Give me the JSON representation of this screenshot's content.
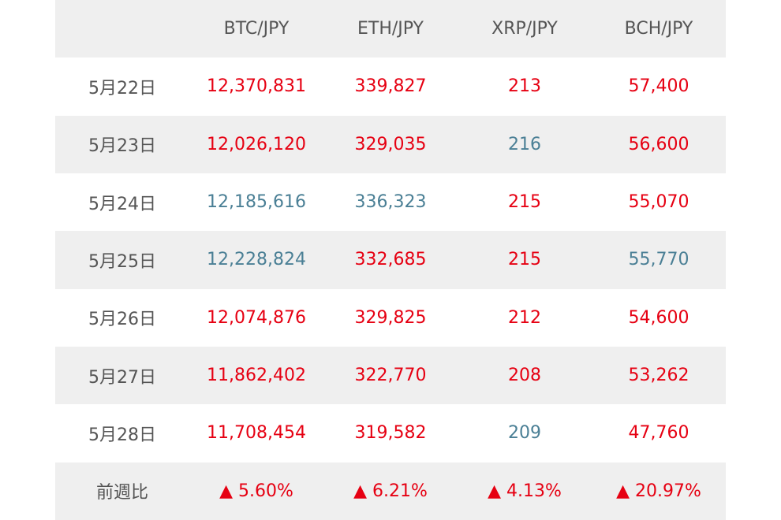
{
  "table": {
    "header": [
      "BTC/JPY",
      "ETH/JPY",
      "XRP/JPY",
      "BCH/JPY"
    ],
    "rows": [
      {
        "label": "5月22日",
        "cells": [
          "12,370,831",
          "339,827",
          "213",
          "57,400"
        ],
        "colors": [
          "#e60012",
          "#e60012",
          "#e60012",
          "#e60012"
        ]
      },
      {
        "label": "5月23日",
        "cells": [
          "12,026,120",
          "329,035",
          "216",
          "56,600"
        ],
        "colors": [
          "#e60012",
          "#e60012",
          "#4a7f95",
          "#e60012"
        ]
      },
      {
        "label": "5月24日",
        "cells": [
          "12,185,616",
          "336,323",
          "215",
          "55,070"
        ],
        "colors": [
          "#4a7f95",
          "#4a7f95",
          "#e60012",
          "#e60012"
        ]
      },
      {
        "label": "5月25日",
        "cells": [
          "12,228,824",
          "332,685",
          "215",
          "55,770"
        ],
        "colors": [
          "#4a7f95",
          "#e60012",
          "#e60012",
          "#4a7f95"
        ]
      },
      {
        "label": "5月26日",
        "cells": [
          "12,074,876",
          "329,825",
          "212",
          "54,600"
        ],
        "colors": [
          "#e60012",
          "#e60012",
          "#e60012",
          "#e60012"
        ]
      },
      {
        "label": "5月27日",
        "cells": [
          "11,862,402",
          "322,770",
          "208",
          "53,262"
        ],
        "colors": [
          "#e60012",
          "#e60012",
          "#e60012",
          "#e60012"
        ]
      },
      {
        "label": "5月28日",
        "cells": [
          "11,708,454",
          "319,582",
          "209",
          "47,760"
        ],
        "colors": [
          "#e60012",
          "#e60012",
          "#4a7f95",
          "#e60012"
        ]
      },
      {
        "label": "前週比",
        "cells": [
          "▲ 5.60%",
          "▲ 6.21%",
          "▲ 4.13%",
          "▲ 20.97%"
        ],
        "colors": [
          "#e60012",
          "#e60012",
          "#e60012",
          "#e60012"
        ]
      }
    ]
  }
}
